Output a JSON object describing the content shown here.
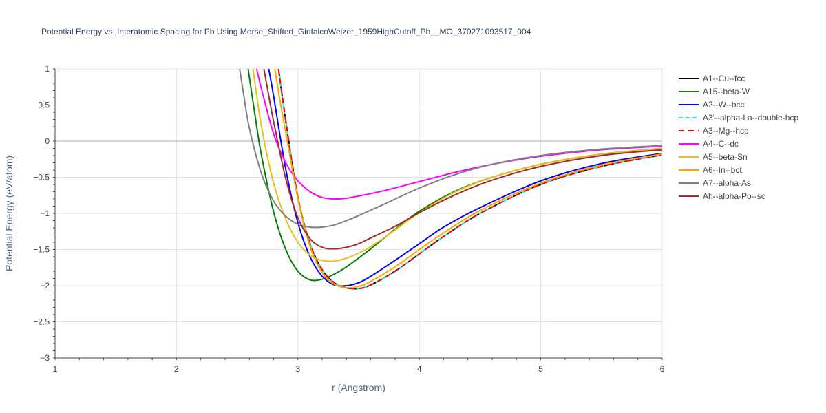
{
  "chart_data": {
    "type": "line",
    "title": "Potential Energy vs. Interatomic Spacing for Pb Using Morse_Shifted_GirifalcoWeizer_1959HighCutoff_Pb__MO_370271093517_004",
    "xlabel": "r (Angstrom)",
    "ylabel": "Potential Energy (eV/atom)",
    "xlim": [
      1,
      6
    ],
    "ylim": [
      -3,
      1
    ],
    "x_ticks": [
      1,
      2,
      3,
      4,
      5,
      6
    ],
    "x_tick_labels": [
      "1",
      "2",
      "3",
      "4",
      "5",
      "6"
    ],
    "y_ticks": [
      1,
      0.5,
      0,
      -0.5,
      -1,
      -1.5,
      -2,
      -2.5,
      -3
    ],
    "y_tick_labels": [
      "1",
      "0.5",
      "0",
      "−0.5",
      "−1",
      "−1.5",
      "−2",
      "−2.5",
      "−3"
    ],
    "grid": true,
    "legend_position": "right",
    "series": [
      {
        "name": "A1--Cu--fcc",
        "color": "#000000",
        "dash": "solid",
        "x": [
          2.84,
          2.9,
          3.0,
          3.1,
          3.2,
          3.3,
          3.4,
          3.5,
          3.6,
          3.8,
          4.0,
          4.2,
          4.5,
          5.0,
          5.5,
          6.0
        ],
        "y": [
          1.0,
          0.28,
          -0.78,
          -1.42,
          -1.78,
          -1.96,
          -2.03,
          -2.04,
          -1.99,
          -1.8,
          -1.56,
          -1.32,
          -1.0,
          -0.6,
          -0.35,
          -0.19
        ]
      },
      {
        "name": "A15--beta-W",
        "color": "#008000",
        "dash": "solid",
        "x": [
          2.59,
          2.65,
          2.7,
          2.8,
          2.9,
          3.0,
          3.1,
          3.2,
          3.3,
          3.4,
          3.6,
          3.8,
          4.0,
          4.3,
          4.6,
          5.0,
          5.5,
          6.0
        ],
        "y": [
          1.0,
          0.32,
          -0.2,
          -0.98,
          -1.5,
          -1.8,
          -1.92,
          -1.91,
          -1.84,
          -1.74,
          -1.49,
          -1.22,
          -0.97,
          -0.69,
          -0.5,
          -0.32,
          -0.18,
          -0.1
        ]
      },
      {
        "name": "A2--W--bcc",
        "color": "#0000ff",
        "dash": "solid",
        "x": [
          2.76,
          2.8,
          2.9,
          3.0,
          3.1,
          3.2,
          3.3,
          3.4,
          3.5,
          3.6,
          3.8,
          4.0,
          4.2,
          4.5,
          5.0,
          5.5,
          6.0
        ],
        "y": [
          1.0,
          0.62,
          -0.39,
          -1.13,
          -1.6,
          -1.87,
          -1.99,
          -2.0,
          -1.96,
          -1.87,
          -1.65,
          -1.42,
          -1.19,
          -0.92,
          -0.55,
          -0.31,
          -0.17
        ]
      },
      {
        "name": "A3'--alpha-La--double-hcp",
        "color": "#00ffff",
        "dash": "6,4",
        "x": [
          2.84,
          2.9,
          3.0,
          3.1,
          3.2,
          3.3,
          3.4,
          3.5,
          3.6,
          3.8,
          4.0,
          4.2,
          4.5,
          5.0,
          5.5,
          6.0
        ],
        "y": [
          1.0,
          0.28,
          -0.78,
          -1.42,
          -1.78,
          -1.96,
          -2.03,
          -2.04,
          -1.99,
          -1.8,
          -1.56,
          -1.32,
          -1.0,
          -0.6,
          -0.35,
          -0.19
        ]
      },
      {
        "name": "A3--Mg--hcp",
        "color": "#ff0000",
        "dash": "8,6",
        "x": [
          2.84,
          2.9,
          3.0,
          3.1,
          3.2,
          3.3,
          3.4,
          3.5,
          3.6,
          3.8,
          4.0,
          4.2,
          4.5,
          5.0,
          5.5,
          6.0
        ],
        "y": [
          1.0,
          0.28,
          -0.78,
          -1.42,
          -1.78,
          -1.96,
          -2.03,
          -2.04,
          -1.99,
          -1.8,
          -1.56,
          -1.32,
          -1.0,
          -0.6,
          -0.35,
          -0.19
        ]
      },
      {
        "name": "A4--C--dc",
        "color": "#ff00ff",
        "dash": "solid",
        "x": [
          2.66,
          2.7,
          2.8,
          2.9,
          3.0,
          3.1,
          3.2,
          3.3,
          3.4,
          3.5,
          3.7,
          4.0,
          4.3,
          4.6,
          5.0,
          5.5,
          6.0
        ],
        "y": [
          1.0,
          0.72,
          0.1,
          -0.3,
          -0.55,
          -0.7,
          -0.78,
          -0.8,
          -0.79,
          -0.76,
          -0.69,
          -0.56,
          -0.43,
          -0.32,
          -0.21,
          -0.12,
          -0.07
        ]
      },
      {
        "name": "A5--beta-Sn",
        "color": "#e6bf1f",
        "dash": "solid",
        "x": [
          2.63,
          2.7,
          2.8,
          2.9,
          3.0,
          3.1,
          3.2,
          3.3,
          3.4,
          3.5,
          3.6,
          3.8,
          4.0,
          4.3,
          4.6,
          5.0,
          5.5,
          6.0
        ],
        "y": [
          1.0,
          0.2,
          -0.58,
          -1.08,
          -1.4,
          -1.58,
          -1.65,
          -1.66,
          -1.62,
          -1.55,
          -1.46,
          -1.23,
          -0.99,
          -0.7,
          -0.5,
          -0.32,
          -0.18,
          -0.1
        ]
      },
      {
        "name": "A6--In--bct",
        "color": "#ffa500",
        "dash": "solid",
        "x": [
          2.81,
          2.85,
          2.9,
          3.0,
          3.1,
          3.2,
          3.3,
          3.4,
          3.5,
          3.6,
          3.8,
          4.0,
          4.2,
          4.5,
          5.0,
          5.5,
          6.0
        ],
        "y": [
          1.0,
          0.58,
          0.12,
          -0.8,
          -1.46,
          -1.82,
          -1.98,
          -2.03,
          -2.01,
          -1.94,
          -1.74,
          -1.5,
          -1.27,
          -0.96,
          -0.58,
          -0.33,
          -0.18
        ]
      },
      {
        "name": "A7--alpha-As",
        "color": "#808080",
        "dash": "solid",
        "x": [
          2.52,
          2.55,
          2.6,
          2.7,
          2.8,
          2.9,
          3.0,
          3.1,
          3.2,
          3.3,
          3.4,
          3.5,
          3.7,
          4.0,
          4.3,
          4.6,
          5.0,
          5.5,
          6.0
        ],
        "y": [
          1.0,
          0.68,
          0.18,
          -0.45,
          -0.83,
          -1.04,
          -1.15,
          -1.19,
          -1.19,
          -1.16,
          -1.1,
          -1.03,
          -0.88,
          -0.65,
          -0.46,
          -0.32,
          -0.2,
          -0.11,
          -0.06
        ]
      },
      {
        "name": "Ah--alpha-Po--sc",
        "color": "#a52a2a",
        "dash": "solid",
        "x": [
          2.72,
          2.75,
          2.8,
          2.9,
          3.0,
          3.1,
          3.2,
          3.3,
          3.4,
          3.5,
          3.6,
          3.8,
          4.0,
          4.3,
          4.6,
          5.0,
          5.5,
          6.0
        ],
        "y": [
          1.0,
          0.72,
          0.27,
          -0.52,
          -1.06,
          -1.35,
          -1.47,
          -1.49,
          -1.47,
          -1.42,
          -1.34,
          -1.18,
          -0.99,
          -0.74,
          -0.54,
          -0.35,
          -0.2,
          -0.12
        ]
      }
    ]
  }
}
